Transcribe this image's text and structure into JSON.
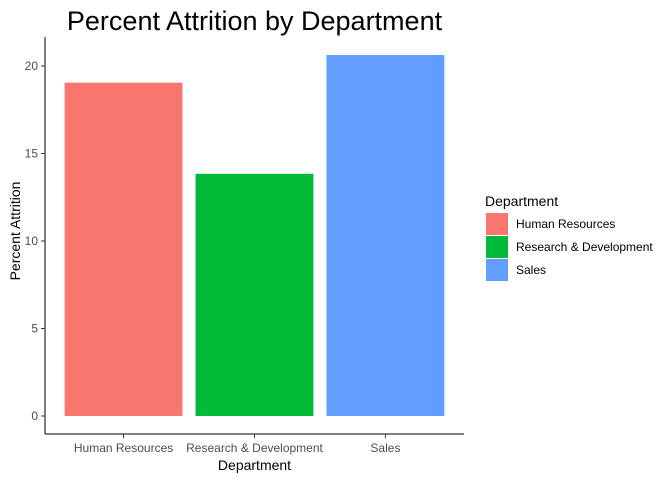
{
  "chart_data": {
    "type": "bar",
    "title": "Percent Attrition by Department",
    "xlabel": "Department",
    "ylabel": "Percent Attrition",
    "categories": [
      "Human Resources",
      "Research & Development",
      "Sales"
    ],
    "values": [
      19.05,
      13.84,
      20.63
    ],
    "colors": [
      "#F8766D",
      "#00BA38",
      "#619CFF"
    ],
    "ylim": [
      -1.03,
      21.66
    ],
    "yticks": [
      0,
      5,
      10,
      15,
      20
    ],
    "grid": false,
    "legend": {
      "title": "Department",
      "placement": "right",
      "entries": [
        "Human Resources",
        "Research & Development",
        "Sales"
      ]
    }
  }
}
